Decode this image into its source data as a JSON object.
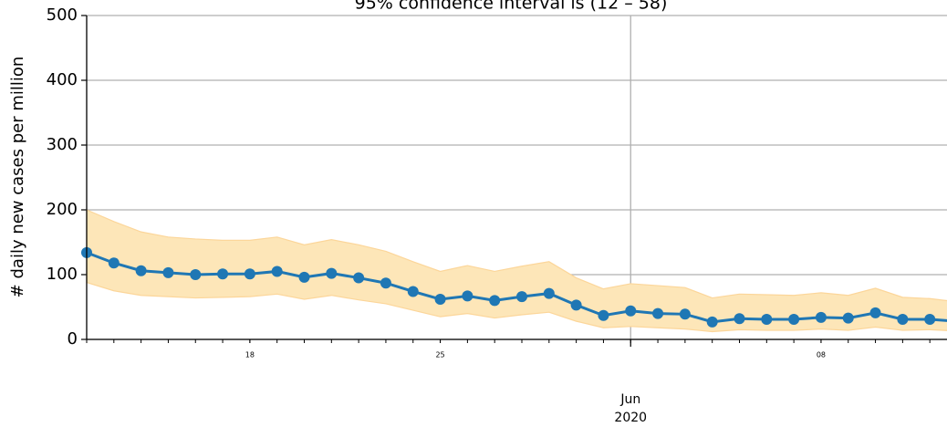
{
  "chart_data": {
    "type": "line",
    "title": "95% confidence interval is (12 – 58)",
    "ylabel": "# daily new cases per million",
    "x": [
      "2020-05-12",
      "2020-05-13",
      "2020-05-14",
      "2020-05-15",
      "2020-05-16",
      "2020-05-17",
      "2020-05-18",
      "2020-05-19",
      "2020-05-20",
      "2020-05-21",
      "2020-05-22",
      "2020-05-23",
      "2020-05-24",
      "2020-05-25",
      "2020-05-26",
      "2020-05-27",
      "2020-05-28",
      "2020-05-29",
      "2020-05-30",
      "2020-05-31",
      "2020-06-01",
      "2020-06-02",
      "2020-06-03",
      "2020-06-04",
      "2020-06-05",
      "2020-06-06",
      "2020-06-07",
      "2020-06-08",
      "2020-06-09",
      "2020-06-10",
      "2020-06-11",
      "2020-06-12",
      "2020-06-13"
    ],
    "values": [
      134,
      118,
      106,
      103,
      100,
      101,
      101,
      105,
      96,
      102,
      95,
      87,
      74,
      62,
      67,
      60,
      66,
      71,
      53,
      37,
      44,
      40,
      39,
      27,
      32,
      31,
      31,
      34,
      33,
      41,
      31,
      31,
      28
    ],
    "ci_upper": [
      200,
      182,
      166,
      158,
      155,
      153,
      153,
      158,
      146,
      154,
      146,
      136,
      120,
      105,
      114,
      105,
      113,
      120,
      95,
      78,
      86,
      83,
      80,
      64,
      70,
      69,
      68,
      72,
      68,
      79,
      65,
      63,
      58
    ],
    "ci_lower": [
      88,
      75,
      68,
      66,
      64,
      65,
      66,
      70,
      62,
      68,
      61,
      55,
      45,
      35,
      40,
      33,
      38,
      42,
      28,
      18,
      20,
      18,
      16,
      12,
      15,
      14,
      14,
      16,
      14,
      19,
      14,
      15,
      13
    ],
    "color": "#1f77b4",
    "band_color": "#fde6b8",
    "xlim": [
      "2020-05-12",
      "2020-06-13"
    ],
    "xticks": [
      {
        "value": "2020-05-18",
        "label": "18"
      },
      {
        "value": "2020-05-25",
        "label": "25"
      },
      {
        "value": "2020-06-01",
        "label": "Jun",
        "sublabel": "2020"
      },
      {
        "value": "2020-06-08",
        "label": "08"
      }
    ],
    "ylim": [
      0,
      500
    ],
    "yticks": [
      0,
      100,
      200,
      300,
      400,
      500
    ],
    "grid": true
  }
}
